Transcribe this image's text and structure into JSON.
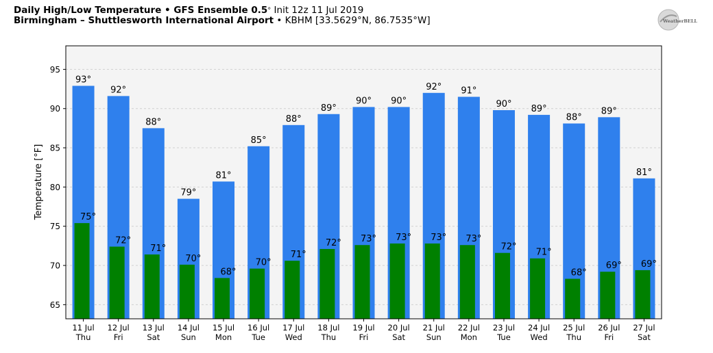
{
  "header": {
    "title_bold": "Daily High/Low Temperature • GFS Ensemble 0.5",
    "title_deg": "°",
    "title_rest": " Init 12z 11 Jul 2019",
    "location_bold": "Birmingham – Shuttlesworth International Airport",
    "location_rest": " • KBHM [33.5629°N, 86.7535°W]"
  },
  "logo": {
    "text": "WeatherBELL"
  },
  "chart_data": {
    "type": "bar",
    "ylabel": "Temperature [°F]",
    "xlabel": "",
    "ylim": [
      63.2,
      98
    ],
    "yticks": [
      65,
      70,
      75,
      80,
      85,
      90,
      95
    ],
    "grid": true,
    "categories": [
      [
        "11 Jul",
        "Thu"
      ],
      [
        "12 Jul",
        "Fri"
      ],
      [
        "13 Jul",
        "Sat"
      ],
      [
        "14 Jul",
        "Sun"
      ],
      [
        "15 Jul",
        "Mon"
      ],
      [
        "16 Jul",
        "Tue"
      ],
      [
        "17 Jul",
        "Wed"
      ],
      [
        "18 Jul",
        "Thu"
      ],
      [
        "19 Jul",
        "Fri"
      ],
      [
        "20 Jul",
        "Sat"
      ],
      [
        "21 Jul",
        "Sun"
      ],
      [
        "22 Jul",
        "Mon"
      ],
      [
        "23 Jul",
        "Tue"
      ],
      [
        "24 Jul",
        "Wed"
      ],
      [
        "25 Jul",
        "Thu"
      ],
      [
        "26 Jul",
        "Fri"
      ],
      [
        "27 Jul",
        "Sat"
      ]
    ],
    "series": [
      {
        "name": "High",
        "color": "#2f80ed",
        "values": [
          92.9,
          91.6,
          87.5,
          78.5,
          80.7,
          85.2,
          87.9,
          89.3,
          90.2,
          90.2,
          92.0,
          91.5,
          89.8,
          89.2,
          88.1,
          88.9,
          81.1
        ],
        "labels": [
          "93°",
          "92°",
          "88°",
          "79°",
          "81°",
          "85°",
          "88°",
          "89°",
          "90°",
          "90°",
          "92°",
          "91°",
          "90°",
          "89°",
          "88°",
          "89°",
          "81°"
        ]
      },
      {
        "name": "Low",
        "color": "#008000",
        "values": [
          75.4,
          72.4,
          71.4,
          70.1,
          68.4,
          69.6,
          70.6,
          72.1,
          72.6,
          72.8,
          72.8,
          72.6,
          71.6,
          70.9,
          68.3,
          69.2,
          69.4
        ],
        "labels": [
          "75°",
          "72°",
          "71°",
          "70°",
          "68°",
          "70°",
          "71°",
          "72°",
          "73°",
          "73°",
          "73°",
          "73°",
          "72°",
          "71°",
          "68°",
          "69°",
          "69°"
        ]
      }
    ]
  }
}
